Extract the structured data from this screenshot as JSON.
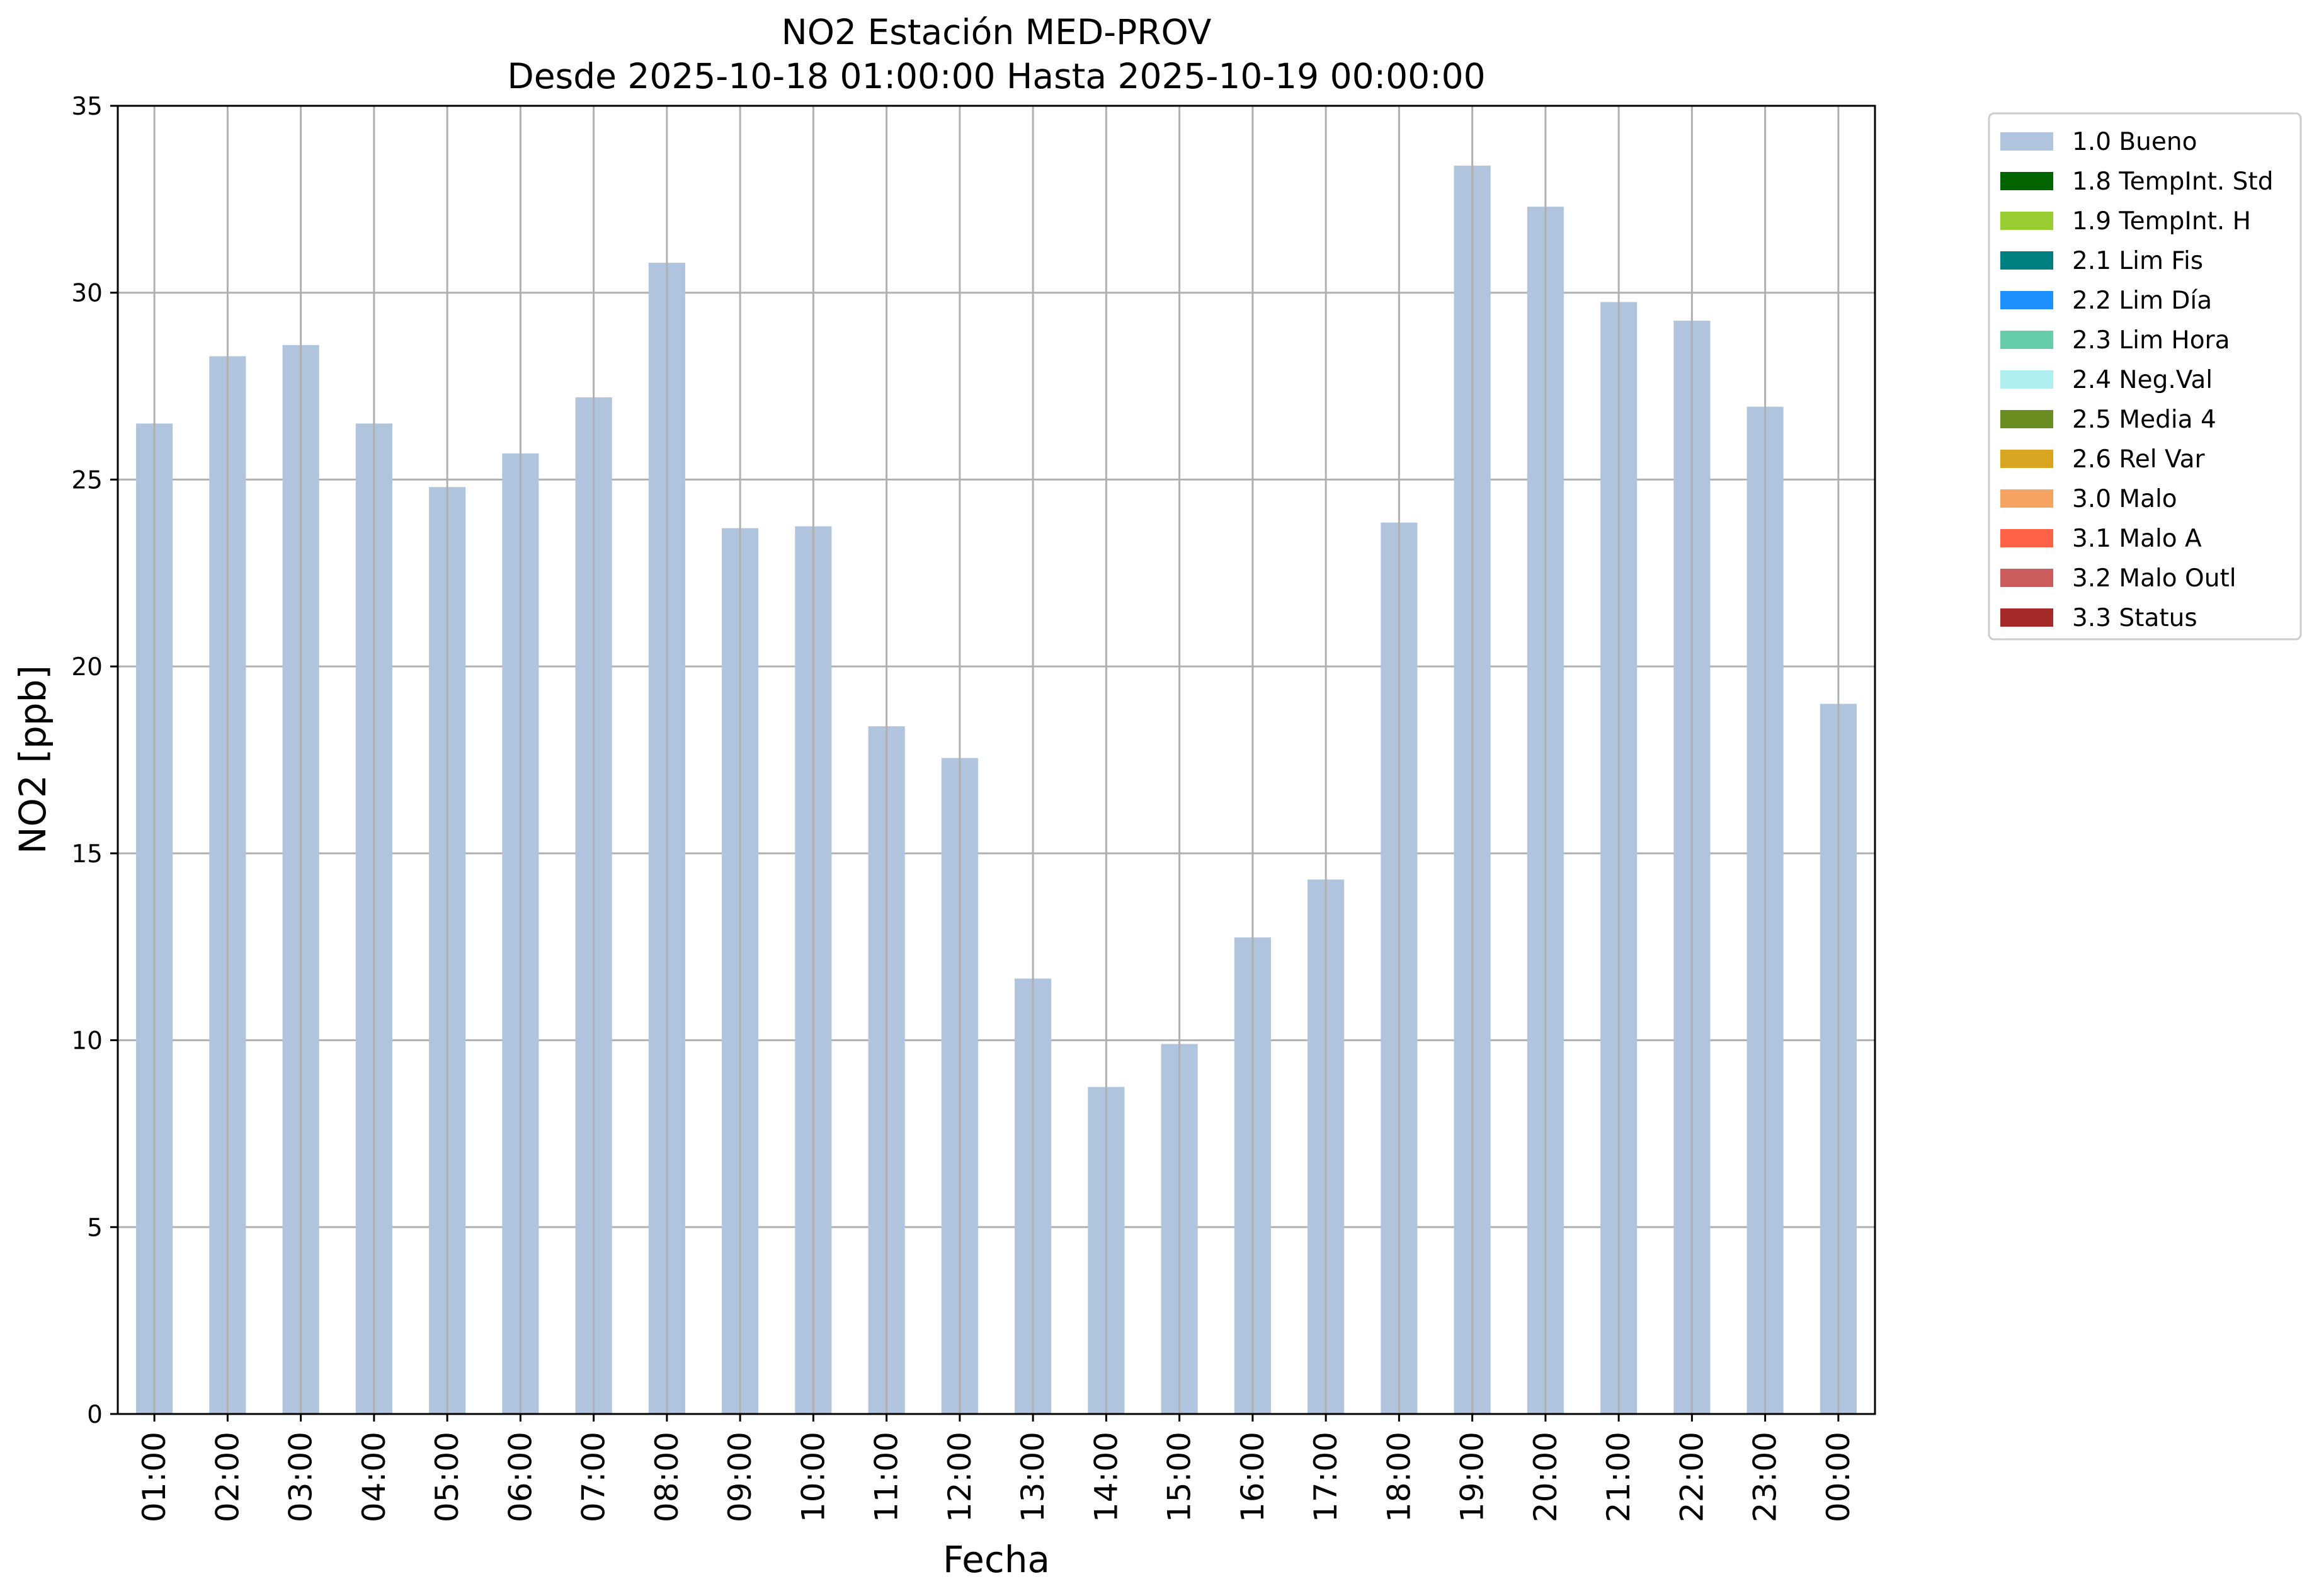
{
  "chart_data": {
    "type": "bar",
    "title": "NO2 Estación MED-PROV",
    "subtitle": "Desde 2025-10-18 01:00:00 Hasta 2025-10-19 00:00:00",
    "xlabel": "Fecha",
    "ylabel": "NO2 [ppb]",
    "ylim": [
      0,
      35
    ],
    "yticks": [
      0,
      5,
      10,
      15,
      20,
      25,
      30,
      35
    ],
    "grid": true,
    "legend_position": "outside-top-right",
    "categories": [
      "01:00",
      "02:00",
      "03:00",
      "04:00",
      "05:00",
      "06:00",
      "07:00",
      "08:00",
      "09:00",
      "10:00",
      "11:00",
      "12:00",
      "13:00",
      "14:00",
      "15:00",
      "16:00",
      "17:00",
      "18:00",
      "19:00",
      "20:00",
      "21:00",
      "22:00",
      "23:00",
      "00:00"
    ],
    "series": [
      {
        "name": "1.0 Bueno",
        "color": "#b0c4de",
        "values": [
          26.5,
          28.3,
          28.6,
          26.5,
          24.8,
          25.7,
          27.2,
          30.8,
          23.7,
          23.75,
          18.4,
          17.55,
          11.65,
          8.75,
          9.9,
          12.75,
          14.3,
          23.85,
          33.4,
          32.3,
          29.75,
          29.25,
          26.95,
          19.0
        ]
      }
    ],
    "legend": [
      {
        "label": "1.0 Bueno",
        "color": "#b0c4de"
      },
      {
        "label": "1.8 TempInt. Std",
        "color": "#006400"
      },
      {
        "label": "1.9 TempInt. H",
        "color": "#9acd32"
      },
      {
        "label": "2.1 Lim Fis",
        "color": "#008080"
      },
      {
        "label": "2.2 Lim Día",
        "color": "#1e90ff"
      },
      {
        "label": "2.3 Lim Hora",
        "color": "#66cdaa"
      },
      {
        "label": "2.4 Neg.Val",
        "color": "#afeeee"
      },
      {
        "label": "2.5 Media 4",
        "color": "#6b8e23"
      },
      {
        "label": "2.6 Rel Var",
        "color": "#daa520"
      },
      {
        "label": "3.0 Malo",
        "color": "#f4a460"
      },
      {
        "label": "3.1 Malo A",
        "color": "#ff6347"
      },
      {
        "label": "3.2 Malo Outl",
        "color": "#cd5c5c"
      },
      {
        "label": "3.3 Status",
        "color": "#a52a2a"
      }
    ]
  }
}
